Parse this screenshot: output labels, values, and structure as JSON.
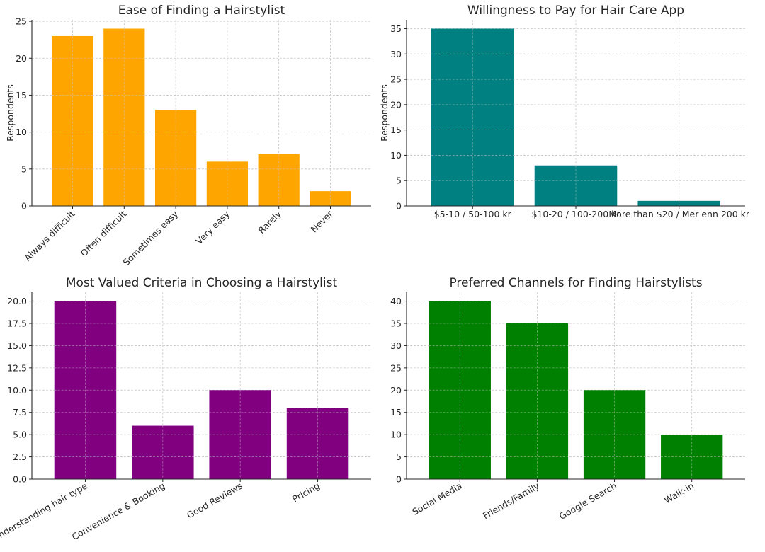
{
  "chart_data": [
    {
      "type": "bar",
      "title": "Ease of Finding a Hairstylist",
      "categories": [
        "Always difficult",
        "Often difficult",
        "Sometimes easy",
        "Very easy",
        "Rarely",
        "Never"
      ],
      "values": [
        23,
        24,
        13,
        6,
        7,
        2
      ],
      "xlabel": "",
      "ylabel": "Respondents",
      "ylim": [
        0,
        25.2
      ],
      "yticks": [
        0,
        5,
        10,
        15,
        20,
        25
      ],
      "ytick_labels": [
        "0",
        "5",
        "10",
        "15",
        "20",
        "25"
      ],
      "bar_color": "#FFA500",
      "xtick_rotation": -45,
      "grid": true
    },
    {
      "type": "bar",
      "title": "Willingness to Pay for Hair Care App",
      "categories": [
        "$5-10 / 50-100 kr",
        "$10-20 / 100-200 kr",
        "More than $20 / Mer enn 200 kr"
      ],
      "values": [
        35,
        8,
        1
      ],
      "xlabel": "",
      "ylabel": "Respondents",
      "ylim": [
        0,
        36.75
      ],
      "yticks": [
        0,
        5,
        10,
        15,
        20,
        25,
        30,
        35
      ],
      "ytick_labels": [
        "0",
        "5",
        "10",
        "15",
        "20",
        "25",
        "30",
        "35"
      ],
      "bar_color": "#008080",
      "xtick_rotation": 0,
      "grid": true
    },
    {
      "type": "bar",
      "title": "Most Valued Criteria in Choosing a Hairstylist",
      "categories": [
        "Understanding hair type",
        "Convenience & Booking",
        "Good Reviews",
        "Pricing"
      ],
      "values": [
        20,
        6,
        10,
        8
      ],
      "xlabel": "",
      "ylabel": "",
      "ylim": [
        0,
        21
      ],
      "yticks": [
        0,
        2.5,
        5,
        7.5,
        10,
        12.5,
        15,
        17.5,
        20
      ],
      "ytick_labels": [
        "0.0",
        "2.5",
        "5.0",
        "7.5",
        "10.0",
        "12.5",
        "15.0",
        "17.5",
        "20.0"
      ],
      "bar_color": "#800080",
      "xtick_rotation": -30,
      "grid": true
    },
    {
      "type": "bar",
      "title": "Preferred Channels for Finding Hairstylists",
      "categories": [
        "Social Media",
        "Friends/Family",
        "Google Search",
        "Walk-in"
      ],
      "values": [
        40,
        35,
        20,
        10
      ],
      "xlabel": "",
      "ylabel": "",
      "ylim": [
        0,
        42
      ],
      "yticks": [
        0,
        5,
        10,
        15,
        20,
        25,
        30,
        35,
        40
      ],
      "ytick_labels": [
        "0",
        "5",
        "10",
        "15",
        "20",
        "25",
        "30",
        "35",
        "40"
      ],
      "bar_color": "#008000",
      "xtick_rotation": -30,
      "grid": true
    }
  ]
}
